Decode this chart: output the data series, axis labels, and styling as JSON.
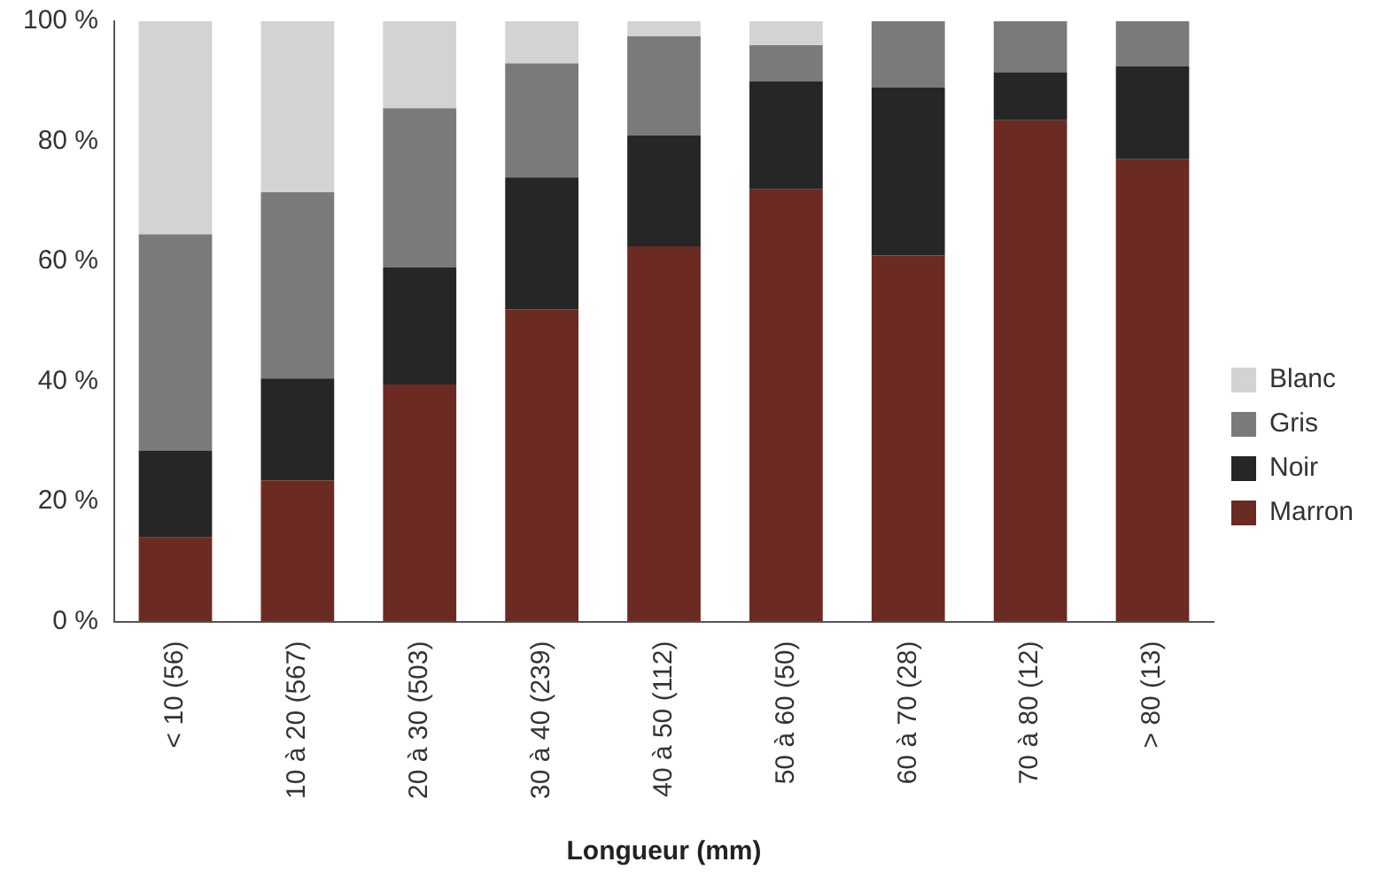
{
  "chart_data": {
    "type": "bar",
    "stacked": true,
    "xlabel": "Longueur (mm)",
    "categories": [
      "< 10 (56)",
      "10 à 20 (567)",
      "20 à 30 (503)",
      "30 à 40 (239)",
      "40 à 50 (112)",
      "50 à 60 (50)",
      "60 à 70 (28)",
      "70 à 80 (12)",
      "> 80 (13)"
    ],
    "series": [
      {
        "name": "Marron",
        "color": "#6b2a22",
        "values": [
          14,
          23.5,
          39.5,
          52,
          62.5,
          72,
          61,
          83.5,
          77
        ]
      },
      {
        "name": "Noir",
        "color": "#262626",
        "values": [
          14.5,
          17,
          19.5,
          22,
          18.5,
          18,
          28,
          8,
          15.5
        ]
      },
      {
        "name": "Gris",
        "color": "#7a7a7a",
        "values": [
          36,
          31,
          26.5,
          19,
          16.5,
          6,
          11,
          8.5,
          7.5
        ]
      },
      {
        "name": "Blanc",
        "color": "#d3d3d3",
        "values": [
          35.5,
          28.5,
          14.5,
          7,
          2.5,
          4,
          0,
          0,
          0
        ]
      }
    ],
    "ylim": [
      0,
      100
    ],
    "yticks": [
      {
        "value": 0,
        "label": "0 %"
      },
      {
        "value": 20,
        "label": "20 %"
      },
      {
        "value": 40,
        "label": "40 %"
      },
      {
        "value": 60,
        "label": "60 %"
      },
      {
        "value": 80,
        "label": "80 %"
      },
      {
        "value": 100,
        "label": "100 %"
      }
    ],
    "grid": false,
    "legend": "right"
  }
}
